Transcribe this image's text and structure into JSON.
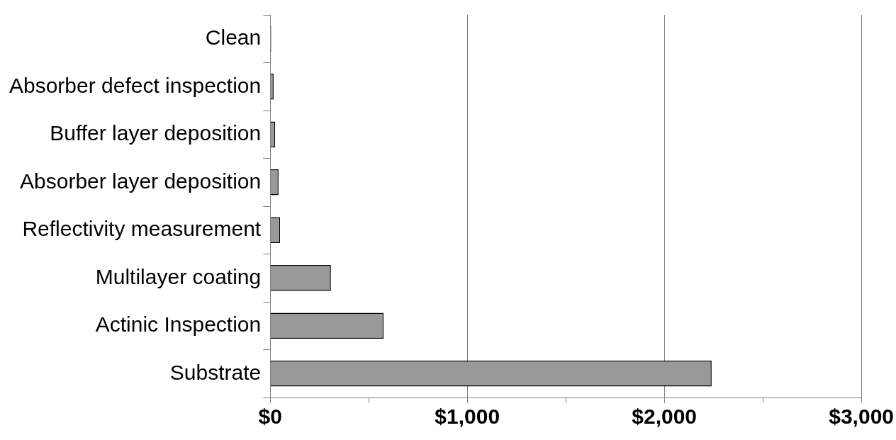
{
  "chart_data": {
    "type": "bar",
    "orientation": "horizontal",
    "categories": [
      "Clean",
      "Absorber defect inspection",
      "Buffer layer deposition",
      "Absorber layer deposition",
      "Reflectivity measurement",
      "Multilayer coating",
      "Actinic Inspection",
      "Substrate"
    ],
    "values": [
      5,
      17,
      25,
      42,
      50,
      308,
      575,
      2240
    ],
    "color": "#999999",
    "xlim": [
      0,
      3000
    ],
    "xticks": [
      {
        "value": 0,
        "label": "$0"
      },
      {
        "value": 500,
        "label": null
      },
      {
        "value": 1000,
        "label": "$1,000"
      },
      {
        "value": 1500,
        "label": null
      },
      {
        "value": 2000,
        "label": "$2,000"
      },
      {
        "value": 2500,
        "label": null
      },
      {
        "value": 3000,
        "label": "$3,000"
      }
    ],
    "grid": "x",
    "legend": false
  }
}
